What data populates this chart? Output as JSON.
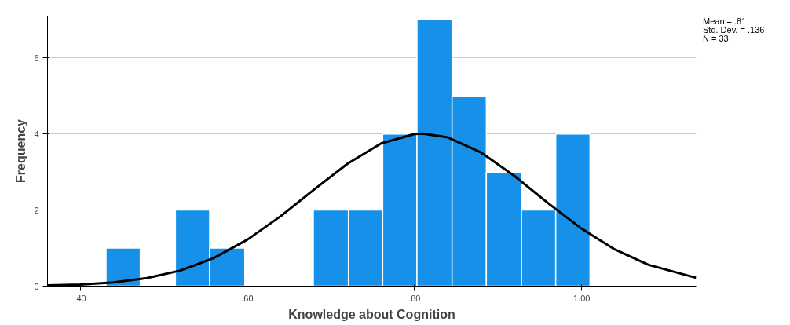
{
  "chart_data": {
    "type": "histogram",
    "xlabel": "Knowledge about Cognition",
    "ylabel": "Frequency",
    "bins": [
      0.431,
      0.472,
      0.514,
      0.555,
      0.597,
      0.679,
      0.721,
      0.762,
      0.803,
      0.845,
      0.886,
      0.928,
      0.969,
      1.01
    ],
    "values": [
      1,
      0,
      2,
      1,
      0,
      2,
      2,
      4,
      7,
      5,
      3,
      2,
      4
    ],
    "color": "#1690e8",
    "series": [
      {
        "type": "line",
        "color": "#000000",
        "x": [
          0.361,
          0.4,
          0.44,
          0.48,
          0.52,
          0.56,
          0.6,
          0.64,
          0.68,
          0.72,
          0.76,
          0.8,
          0.81,
          0.84,
          0.88,
          0.92,
          0.96,
          1.0,
          1.04,
          1.08,
          1.137
        ],
        "values": [
          0.02,
          0.04,
          0.1,
          0.21,
          0.41,
          0.74,
          1.22,
          1.84,
          2.54,
          3.22,
          3.75,
          4.0,
          4.01,
          3.91,
          3.51,
          2.89,
          2.18,
          1.51,
          0.96,
          0.56,
          0.22
        ]
      }
    ],
    "xlim": [
      0.361,
      1.137
    ],
    "ylim": [
      0,
      7.1
    ],
    "xticks": [
      {
        "value": 0.4,
        "label": ".40"
      },
      {
        "value": 0.6,
        "label": ".60"
      },
      {
        "value": 0.8,
        "label": ".80"
      },
      {
        "value": 1.0,
        "label": "1.00"
      }
    ],
    "yticks": [
      0,
      2,
      4,
      6
    ],
    "grid": "y",
    "annotations": [
      "Mean = .81",
      "Std. Dev. = .136",
      "N = 33"
    ]
  }
}
